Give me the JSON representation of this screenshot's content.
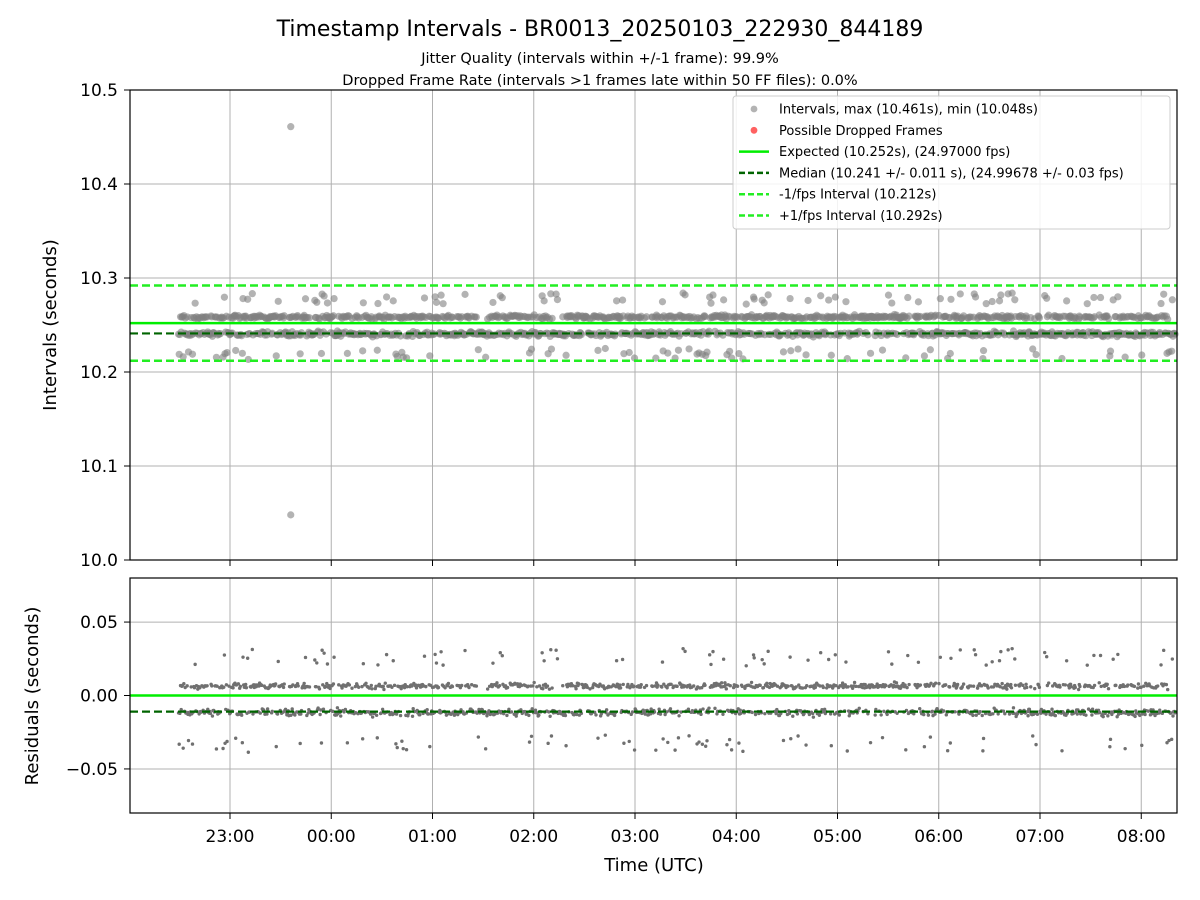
{
  "chart_data": {
    "type": "scatter",
    "title": "Timestamp Intervals - BR0013_20250103_222930_844189",
    "subtitle_lines": [
      "Jitter Quality (intervals within +/-1 frame): 99.9%",
      "Dropped Frame Rate (intervals >1 frames late within 50 FF files): 0.0%"
    ],
    "xlabel": "Time (UTC)",
    "x_tick_labels": [
      "23:00",
      "00:00",
      "01:00",
      "02:00",
      "03:00",
      "04:00",
      "05:00",
      "06:00",
      "07:00",
      "08:00"
    ],
    "x_start": "2025-01-03T22:29:30Z",
    "x_end": "2025-01-04T08:20:00Z",
    "grid": true,
    "colors": {
      "intervals": "#808080",
      "dropped": "#ff5050",
      "expected": "#00ee00",
      "median": "#006400",
      "fps_bounds": "#22ee22"
    },
    "top_panel": {
      "ylabel": "Intervals (seconds)",
      "ylim": [
        10.0,
        10.5
      ],
      "y_tick_labels": [
        "10.0",
        "10.1",
        "10.2",
        "10.3",
        "10.4",
        "10.5"
      ],
      "legend_position": "top-right",
      "legend": [
        "Intervals, max (10.461s), min (10.048s)",
        "Possible Dropped Frames",
        "Expected (10.252s), (24.97000 fps)",
        "Median (10.241 +/- 0.011 s), (24.99678 +/- 0.03 fps)",
        "-1/fps Interval (10.212s)",
        "+1/fps Interval (10.292s)"
      ],
      "expected": 10.252,
      "median": 10.241,
      "minus_interval": 10.212,
      "plus_interval": 10.292,
      "max": 10.461,
      "min": 10.048,
      "outliers": [
        {
          "time": "2025-01-03T23:36:00Z",
          "value": 10.461
        },
        {
          "time": "2025-01-03T23:36:00Z",
          "value": 10.048
        }
      ]
    },
    "bottom_panel": {
      "ylabel": "Residuals (seconds)",
      "ylim": [
        -0.08,
        0.08
      ],
      "y_tick_labels": [
        "−0.05",
        "0.00",
        "0.05"
      ],
      "expected_residual": 0.0,
      "median_residual": -0.011
    }
  }
}
